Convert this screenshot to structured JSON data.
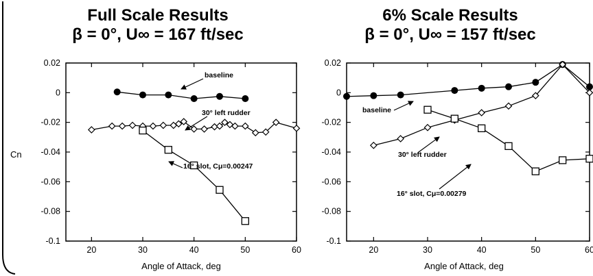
{
  "chart_data": [
    {
      "type": "line",
      "title": "Full Scale Results",
      "subtitle": "β = 0°, U∞ = 167 ft/sec",
      "xlabel": "Angle of Attack, deg",
      "ylabel": "Cn",
      "xlim": [
        15,
        60
      ],
      "ylim": [
        -0.1,
        0.02
      ],
      "xticks": [
        20,
        30,
        40,
        50,
        60
      ],
      "yticks": [
        0.02,
        0,
        -0.02,
        -0.04,
        -0.06,
        -0.08,
        -0.1
      ],
      "ytick_labels": [
        "0.02",
        "0",
        "-0.02",
        "-0.04",
        "-0.06",
        "-0.08",
        "-0.1"
      ],
      "grid": false,
      "series": [
        {
          "name": "baseline",
          "marker": "filled-circle",
          "x": [
            25,
            30,
            35,
            40,
            45,
            50
          ],
          "y": [
            0.0005,
            -0.0015,
            -0.0015,
            -0.004,
            -0.0025,
            -0.004
          ]
        },
        {
          "name": "30° left rudder",
          "marker": "diamond",
          "x": [
            20,
            24,
            26,
            28,
            30,
            32,
            34,
            36,
            37,
            38,
            40,
            42,
            44,
            45,
            46,
            47,
            48,
            50,
            52,
            54,
            56,
            60
          ],
          "y": [
            -0.025,
            -0.0225,
            -0.0225,
            -0.022,
            -0.0225,
            -0.0225,
            -0.022,
            -0.022,
            -0.021,
            -0.0195,
            -0.0245,
            -0.0245,
            -0.023,
            -0.0225,
            -0.02,
            -0.0215,
            -0.0225,
            -0.0225,
            -0.027,
            -0.0265,
            -0.02,
            -0.024
          ]
        },
        {
          "name": "16° slot, Cμ=0.00247",
          "marker": "square",
          "x": [
            30,
            35,
            40,
            45,
            50
          ],
          "y": [
            -0.0255,
            -0.0385,
            -0.049,
            -0.0655,
            -0.0865
          ]
        }
      ],
      "annotations": [
        "baseline",
        "30° left rudder",
        "16° slot, Cμ=0.00247"
      ]
    },
    {
      "type": "line",
      "title": "6% Scale Results",
      "subtitle": "β = 0°, U∞ = 157 ft/sec",
      "xlabel": "Angle of Attack, deg",
      "ylabel": "",
      "xlim": [
        15,
        60
      ],
      "ylim": [
        -0.1,
        0.02
      ],
      "xticks": [
        20,
        30,
        40,
        50,
        60
      ],
      "yticks": [
        0.02,
        0,
        -0.02,
        -0.04,
        -0.06,
        -0.08,
        -0.1
      ],
      "ytick_labels": [
        "0.02",
        "0",
        "-0.02",
        "-0.04",
        "-0.06",
        "-0.08",
        "-0.1"
      ],
      "grid": false,
      "series": [
        {
          "name": "baseline",
          "marker": "filled-circle",
          "x": [
            15,
            20,
            25,
            35,
            40,
            45,
            50,
            55,
            60
          ],
          "y": [
            -0.0025,
            -0.002,
            -0.0015,
            0.0015,
            0.003,
            0.004,
            0.007,
            0.019,
            0.004
          ]
        },
        {
          "name": "30° left rudder",
          "marker": "diamond",
          "x": [
            20,
            25,
            30,
            35,
            40,
            45,
            50,
            55,
            60
          ],
          "y": [
            -0.0355,
            -0.031,
            -0.0235,
            -0.0185,
            -0.0135,
            -0.009,
            -0.002,
            0.019,
            0.0
          ]
        },
        {
          "name": "16° slot, Cμ=0.00279",
          "marker": "square",
          "x": [
            30,
            35,
            40,
            45,
            50,
            55,
            60
          ],
          "y": [
            -0.0115,
            -0.0175,
            -0.024,
            -0.036,
            -0.053,
            -0.0455,
            -0.0445
          ]
        }
      ],
      "annotations": [
        "baseline",
        "30° left rudder",
        "16° slot, Cμ=0.00279"
      ]
    }
  ]
}
